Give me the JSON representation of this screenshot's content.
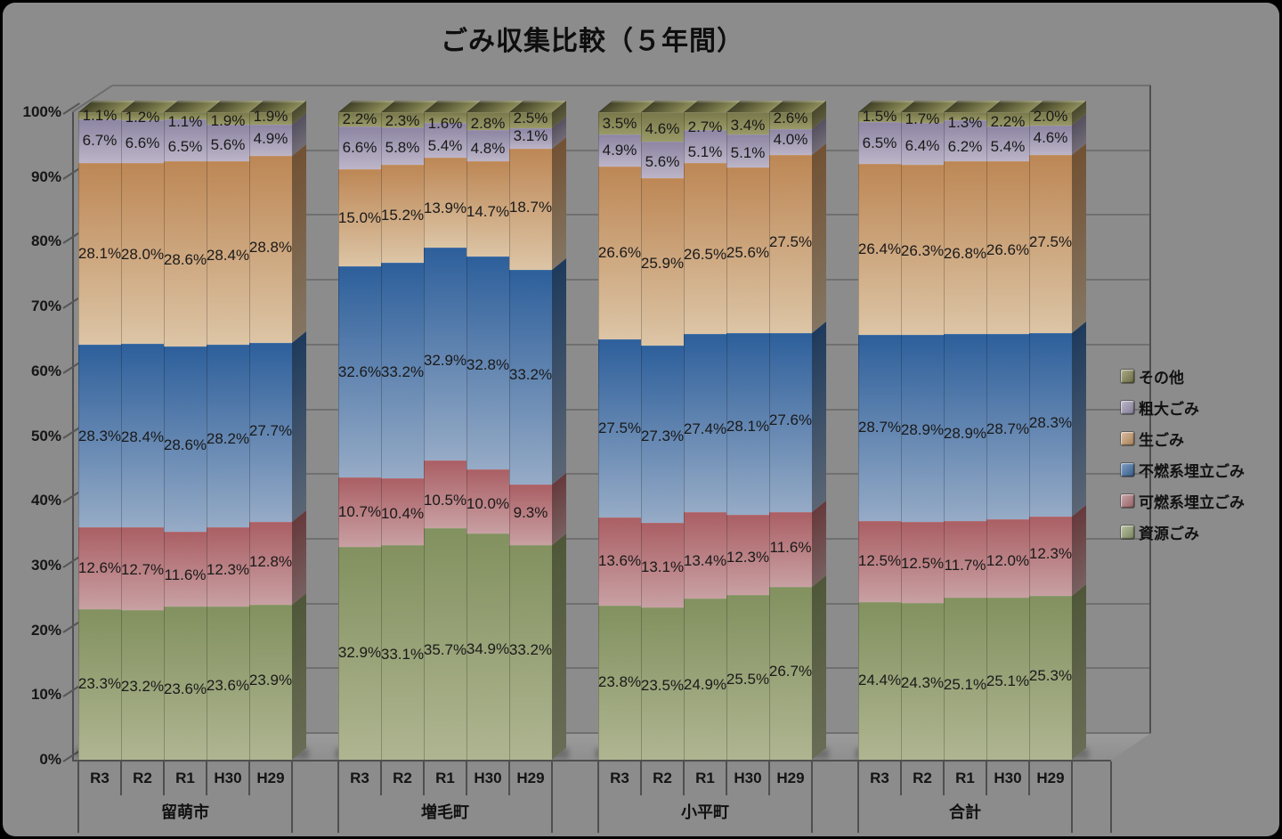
{
  "title": "ごみ収集比較（５年間）",
  "window": {
    "background": "#8c8c8c"
  },
  "y_axis": {
    "ticks": [
      "0%",
      "10%",
      "20%",
      "30%",
      "40%",
      "50%",
      "60%",
      "70%",
      "80%",
      "90%",
      "100%"
    ]
  },
  "x_axis": {
    "years": [
      "R3",
      "R2",
      "R1",
      "H30",
      "H29"
    ],
    "groups": [
      "留萌市",
      "増毛町",
      "小平町",
      "合計"
    ]
  },
  "legend": {
    "position": "right",
    "items": [
      {
        "label": "その他",
        "key": "sonota"
      },
      {
        "label": "粗大ごみ",
        "key": "sodai"
      },
      {
        "label": "生ごみ",
        "key": "nama"
      },
      {
        "label": "不燃系埋立ごみ",
        "key": "funen"
      },
      {
        "label": "可燃系埋立ごみ",
        "key": "kanen"
      },
      {
        "label": "資源ごみ",
        "key": "shigen"
      }
    ]
  },
  "colors": {
    "sonota": {
      "top": "#77774a",
      "bottom": "#9a9a68",
      "legend": "#80804e"
    },
    "sodai": {
      "top": "#8d85a2",
      "bottom": "#bcb5c8",
      "legend": "#9d94b2"
    },
    "nama": {
      "top": "#bd8755",
      "bottom": "#dcc5a6",
      "legend": "#c89a6b"
    },
    "funen": {
      "top": "#2d5f9b",
      "bottom": "#96abc6",
      "legend": "#3f6ea6"
    },
    "kanen": {
      "top": "#aa5f64",
      "bottom": "#c8a0a3",
      "legend": "#b2777b"
    },
    "shigen": {
      "top": "#82915f",
      "bottom": "#afb591",
      "legend": "#93a171"
    }
  },
  "chart_data": {
    "type": "bar",
    "stacked_percent": true,
    "title": "ごみ収集比較（５年間）",
    "ylim": [
      0,
      100
    ],
    "y_ticks_percent": [
      0,
      10,
      20,
      30,
      40,
      50,
      60,
      70,
      80,
      90,
      100
    ],
    "grid": true,
    "legend_position": "right",
    "years": [
      "R3",
      "R2",
      "R1",
      "H30",
      "H29"
    ],
    "series_bottom_to_top": [
      "資源ごみ",
      "可燃系埋立ごみ",
      "不燃系埋立ごみ",
      "生ごみ",
      "粗大ごみ",
      "その他"
    ],
    "series_keys_bottom_to_top": [
      "shigen",
      "kanen",
      "funen",
      "nama",
      "sodai",
      "sonota"
    ],
    "label_format": "0.0%",
    "groups": [
      {
        "name": "留萌市",
        "values": [
          [
            23.3,
            23.2,
            23.6,
            23.6,
            23.9
          ],
          [
            12.6,
            12.7,
            11.6,
            12.3,
            12.8
          ],
          [
            28.3,
            28.4,
            28.6,
            28.2,
            27.7
          ],
          [
            28.1,
            28.0,
            28.6,
            28.4,
            28.8
          ],
          [
            6.7,
            6.6,
            6.5,
            5.6,
            4.9
          ],
          [
            1.1,
            1.2,
            1.1,
            1.9,
            1.9
          ]
        ]
      },
      {
        "name": "増毛町",
        "values": [
          [
            32.9,
            33.1,
            35.7,
            34.9,
            33.2
          ],
          [
            10.7,
            10.4,
            10.5,
            10.0,
            9.3
          ],
          [
            32.6,
            33.2,
            32.9,
            32.8,
            33.2
          ],
          [
            15.0,
            15.2,
            13.9,
            14.7,
            18.7
          ],
          [
            6.6,
            5.8,
            5.4,
            4.8,
            3.1
          ],
          [
            2.2,
            2.3,
            1.6,
            2.8,
            2.5
          ]
        ]
      },
      {
        "name": "小平町",
        "values": [
          [
            23.8,
            23.5,
            24.9,
            25.5,
            26.7
          ],
          [
            13.6,
            13.1,
            13.4,
            12.3,
            11.6
          ],
          [
            27.5,
            27.3,
            27.4,
            28.1,
            27.6
          ],
          [
            26.6,
            25.9,
            26.5,
            25.6,
            27.5
          ],
          [
            4.9,
            5.6,
            5.1,
            5.1,
            4.0
          ],
          [
            3.5,
            4.6,
            2.7,
            3.4,
            2.6
          ]
        ]
      },
      {
        "name": "合計",
        "values": [
          [
            24.4,
            24.3,
            25.1,
            25.1,
            25.3
          ],
          [
            12.5,
            12.5,
            11.7,
            12.0,
            12.3
          ],
          [
            28.7,
            28.9,
            28.9,
            28.7,
            28.3
          ],
          [
            26.4,
            26.3,
            26.8,
            26.6,
            27.5
          ],
          [
            6.5,
            6.4,
            6.2,
            5.4,
            4.6
          ],
          [
            1.5,
            1.7,
            1.3,
            2.2,
            2.0
          ]
        ]
      }
    ]
  }
}
